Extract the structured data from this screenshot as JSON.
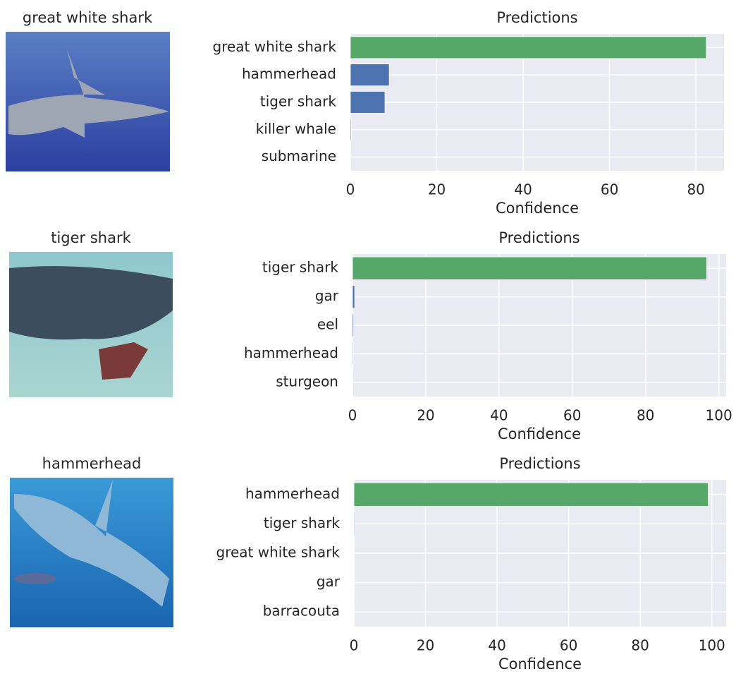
{
  "chart_data": [
    {
      "type": "barh",
      "image_label": "great white shark",
      "title": "Predictions",
      "xlabel": "Confidence",
      "categories": [
        "great white shark",
        "hammerhead",
        "tiger shark",
        "killer whale",
        "submarine"
      ],
      "values": [
        82.4,
        9.0,
        8.0,
        0.2,
        0.1
      ],
      "colors": [
        "#55a868",
        "#4c72b0",
        "#4c72b0",
        "#4c72b0",
        "#4c72b0"
      ],
      "xlim": [
        0,
        86.5
      ],
      "xticks": [
        0,
        20,
        40,
        60,
        80
      ],
      "grid": true
    },
    {
      "type": "barh",
      "image_label": "tiger shark",
      "title": "Predictions",
      "xlabel": "Confidence",
      "categories": [
        "tiger shark",
        "gar",
        "eel",
        "hammerhead",
        "sturgeon"
      ],
      "values": [
        96.7,
        0.6,
        0.3,
        0.2,
        0.1
      ],
      "colors": [
        "#55a868",
        "#4c72b0",
        "#4c72b0",
        "#4c72b0",
        "#4c72b0"
      ],
      "xlim": [
        0,
        102
      ],
      "xticks": [
        0,
        20,
        40,
        60,
        80,
        100
      ],
      "grid": true
    },
    {
      "type": "barh",
      "image_label": "hammerhead",
      "title": "Predictions",
      "xlabel": "Confidence",
      "categories": [
        "hammerhead",
        "tiger shark",
        "great white shark",
        "gar",
        "barracouta"
      ],
      "values": [
        99.0,
        0.2,
        0.1,
        0.1,
        0.1
      ],
      "colors": [
        "#55a868",
        "#4c72b0",
        "#4c72b0",
        "#4c72b0",
        "#4c72b0"
      ],
      "xlim": [
        0,
        104
      ],
      "xticks": [
        0,
        20,
        40,
        60,
        80,
        100
      ],
      "grid": true
    }
  ]
}
